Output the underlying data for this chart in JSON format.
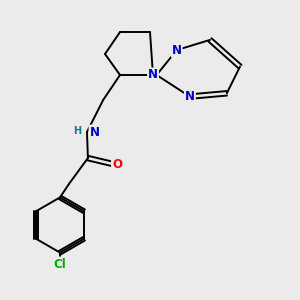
{
  "bg_color": "#ebebeb",
  "bond_color": "#000000",
  "bond_width": 1.4,
  "atom_colors": {
    "N": "#0000cc",
    "O": "#ff0000",
    "Cl": "#00aa00",
    "H": "#008080",
    "C": "#000000"
  },
  "font_size": 8.5,
  "figsize": [
    3.0,
    3.0
  ],
  "dpi": 100
}
